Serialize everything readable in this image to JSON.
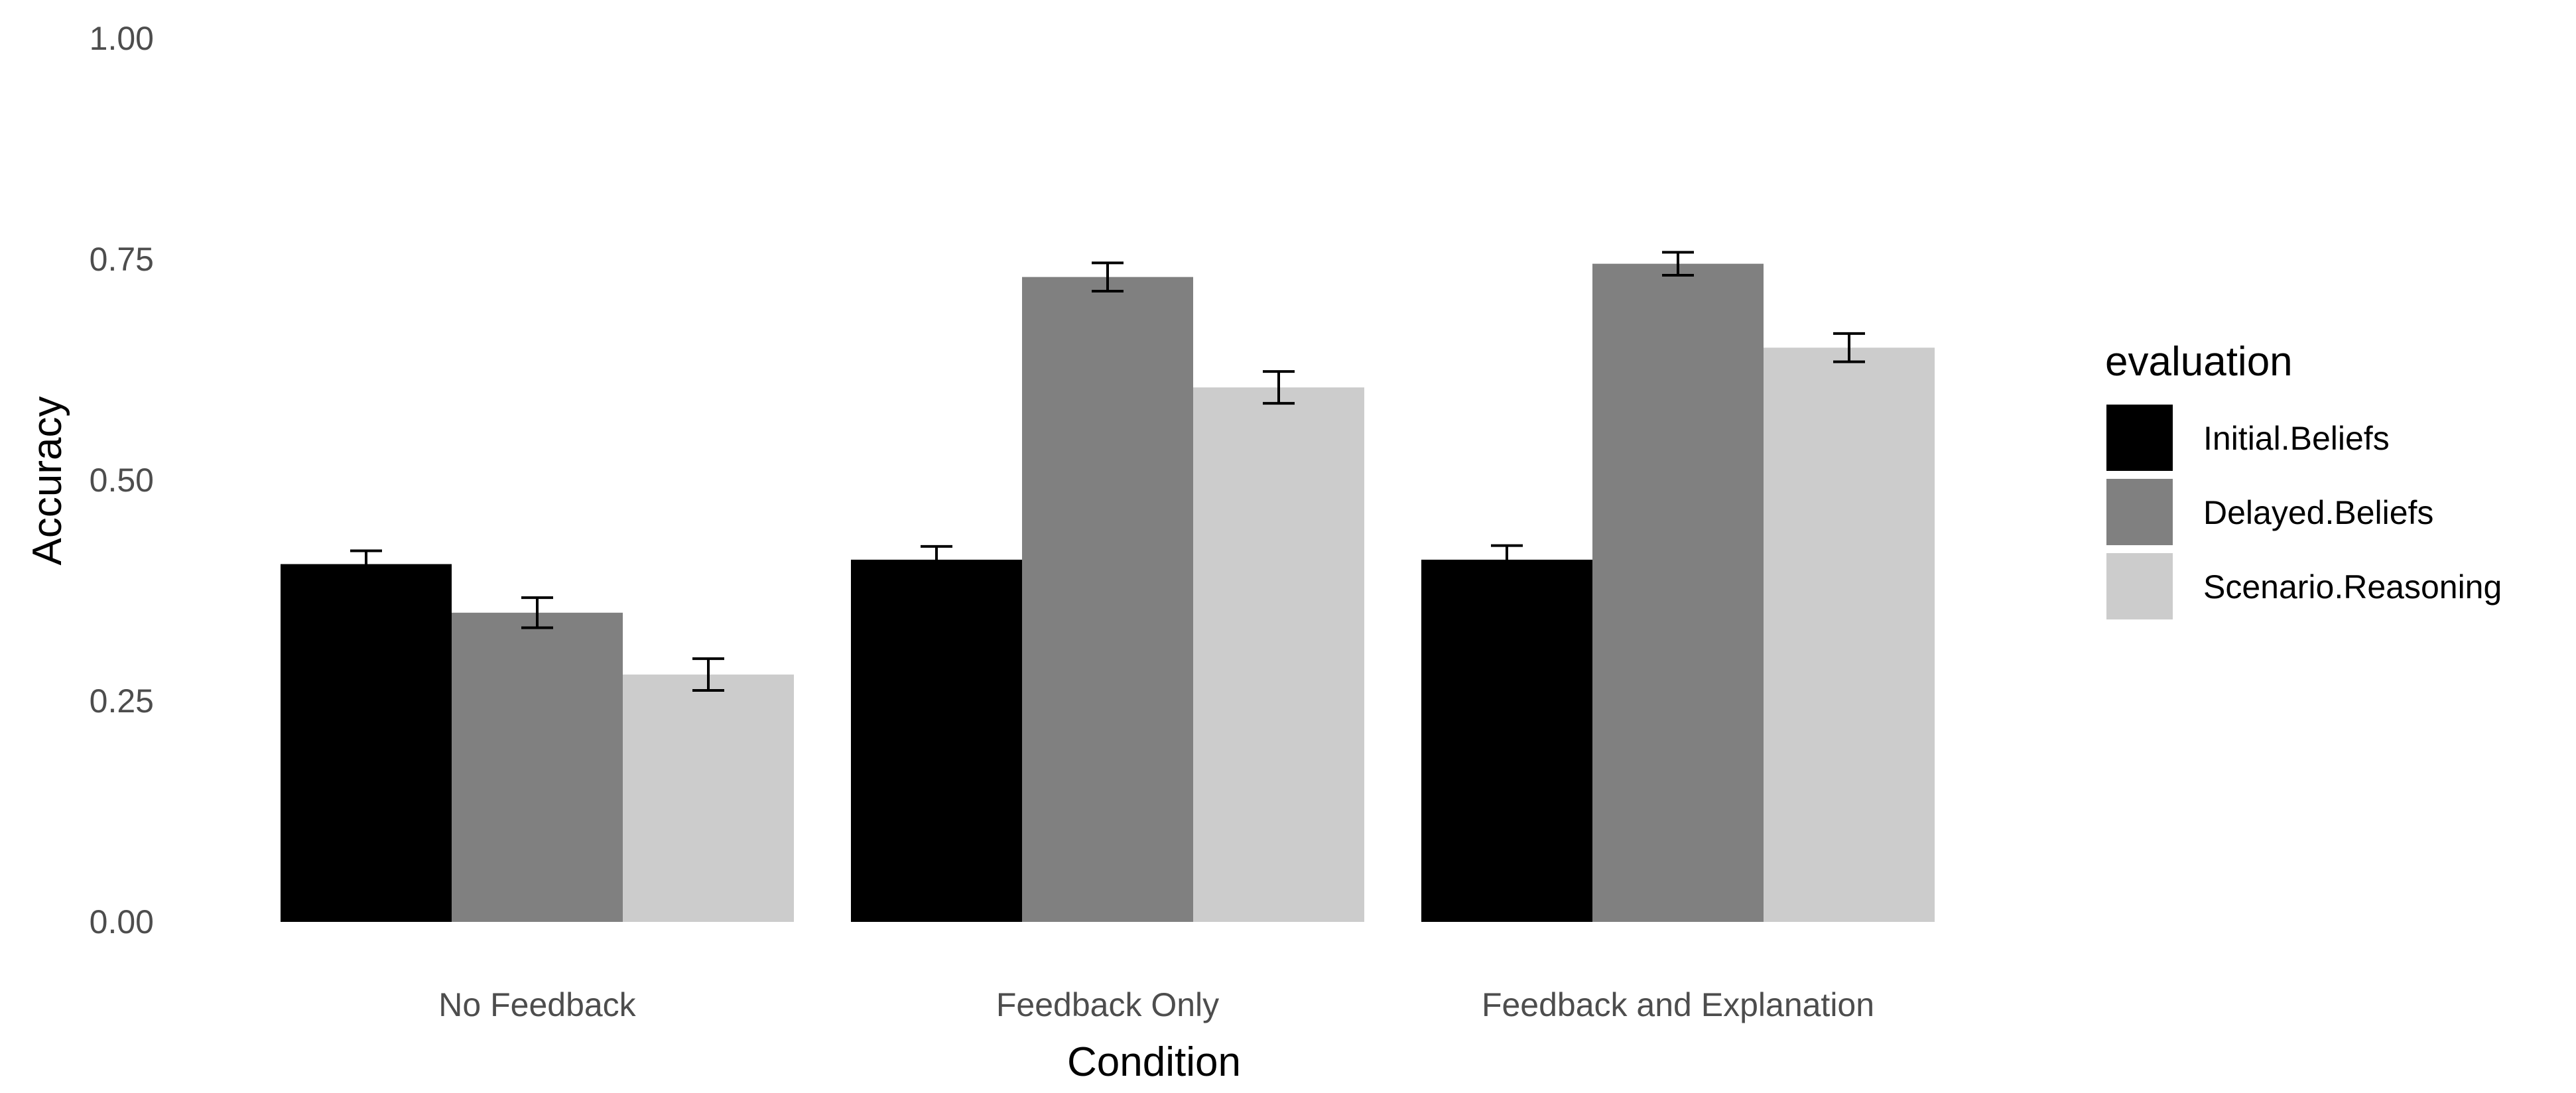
{
  "chart_data": {
    "type": "bar",
    "xlabel": "Condition",
    "ylabel": "Accuracy",
    "ylim": [
      0,
      1
    ],
    "yticks": [
      "0.00",
      "0.25",
      "0.50",
      "0.75",
      "1.00"
    ],
    "grid": false,
    "legend": {
      "title": "evaluation",
      "position": "right"
    },
    "categories": [
      "No Feedback",
      "Feedback Only",
      "Feedback and Explanation"
    ],
    "series": [
      {
        "name": "Initial.Beliefs",
        "color": "#000000",
        "values": [
          0.405,
          0.41,
          0.41
        ],
        "error": [
          0.015,
          0.015,
          0.016
        ]
      },
      {
        "name": "Delayed.Beliefs",
        "color": "#808080",
        "values": [
          0.35,
          0.73,
          0.745
        ],
        "error": [
          0.017,
          0.016,
          0.013
        ]
      },
      {
        "name": "Scenario.Reasoning",
        "color": "#cccccc",
        "values": [
          0.28,
          0.605,
          0.65
        ],
        "error": [
          0.018,
          0.018,
          0.016
        ]
      }
    ]
  }
}
